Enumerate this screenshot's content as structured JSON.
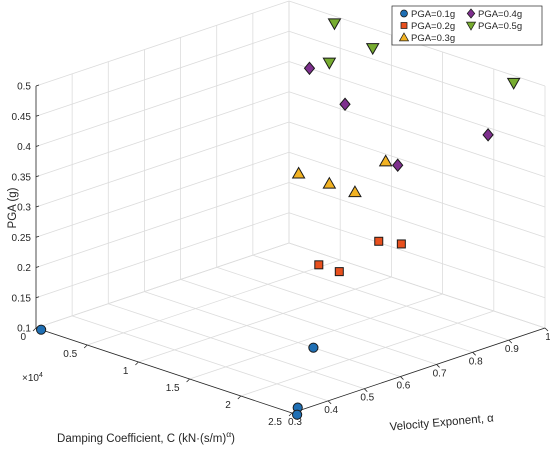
{
  "chart_data": {
    "type": "scatter3d",
    "xlabel": "Damping Coefficient, C (kN·(s/m)",
    "xlabel_sup": "α",
    "xlabel_close": ")",
    "ylabel": "Velocity Exponent, α",
    "zlabel": "PGA (g)",
    "x_multiplier": "×10",
    "x_multiplier_exp": "4",
    "xlim": [
      0,
      2.5
    ],
    "ylim": [
      0.3,
      1.0
    ],
    "zlim": [
      0.1,
      0.5
    ],
    "x_ticks": [
      "0",
      "0.5",
      "1",
      "1.5",
      "2",
      "2.5"
    ],
    "y_ticks": [
      "0.3",
      "0.4",
      "0.5",
      "0.6",
      "0.7",
      "0.8",
      "0.9",
      "1"
    ],
    "z_ticks": [
      "0.1",
      "0.15",
      "0.2",
      "0.25",
      "0.3",
      "0.35",
      "0.4",
      "0.45",
      "0.5"
    ],
    "grid": true,
    "legend_position": "top-right",
    "series": [
      {
        "name": "PGA=0.1g",
        "marker": "circle",
        "color": "#1f6fb4",
        "points": [
          {
            "x": 0.05,
            "y": 0.3,
            "z": 0.1
          },
          {
            "x": 2.45,
            "y": 0.33,
            "z": 0.1
          },
          {
            "x": 2.55,
            "y": 0.3,
            "z": 0.1
          },
          {
            "x": 1.65,
            "y": 0.6,
            "z": 0.1
          }
        ]
      },
      {
        "name": "PGA=0.2g",
        "marker": "square",
        "color": "#e8501e",
        "points": [
          {
            "x": 1.35,
            "y": 0.7,
            "z": 0.2
          },
          {
            "x": 1.55,
            "y": 0.7,
            "z": 0.2
          },
          {
            "x": 1.45,
            "y": 0.9,
            "z": 0.2
          },
          {
            "x": 1.3,
            "y": 0.88,
            "z": 0.2
          }
        ]
      },
      {
        "name": "PGA=0.3g",
        "marker": "triangle-up",
        "color": "#f2b222",
        "points": [
          {
            "x": 0.8,
            "y": 0.8,
            "z": 0.3
          },
          {
            "x": 1.1,
            "y": 0.8,
            "z": 0.3
          },
          {
            "x": 1.35,
            "y": 0.8,
            "z": 0.3
          },
          {
            "x": 1.05,
            "y": 0.97,
            "z": 0.3
          }
        ]
      },
      {
        "name": "PGA=0.4g",
        "marker": "diamond",
        "color": "#7e2f8e",
        "points": [
          {
            "x": 0.9,
            "y": 0.9,
            "z": 0.4
          },
          {
            "x": 0.2,
            "y": 1.0,
            "z": 0.4
          },
          {
            "x": 2.05,
            "y": 0.97,
            "z": 0.4
          },
          {
            "x": 2.05,
            "y": 0.72,
            "z": 0.4
          }
        ]
      },
      {
        "name": "PGA=0.5g",
        "marker": "triangle-down",
        "color": "#77ac30",
        "points": [
          {
            "x": 0.55,
            "y": 0.97,
            "z": 0.5
          },
          {
            "x": 1.1,
            "y": 0.8,
            "z": 0.5
          },
          {
            "x": 1.1,
            "y": 0.92,
            "z": 0.5
          },
          {
            "x": 2.3,
            "y": 0.97,
            "z": 0.5
          }
        ]
      }
    ]
  }
}
